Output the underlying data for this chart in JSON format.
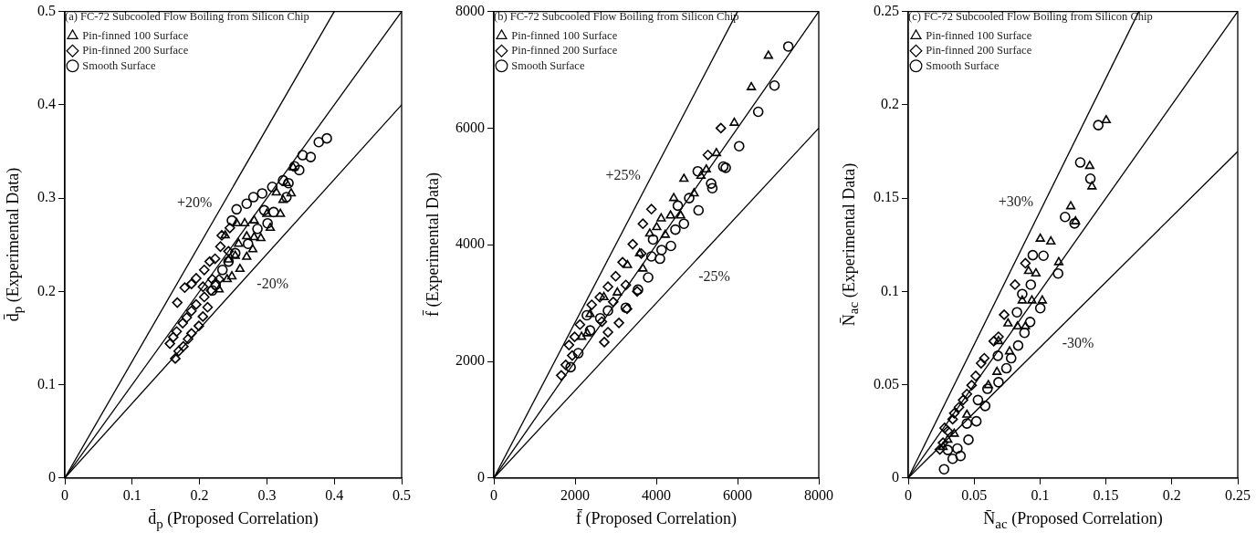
{
  "chart_data": [
    {
      "type": "scatter",
      "xlabel": "d̄$_{p}$ (Proposed Correlation)",
      "ylabel": "d̄$_{p}$ (Experimental Data)",
      "legend_title": "(a) FC-72 Subcooled Flow Boiling from Silicon Chip",
      "legend": "top left",
      "grid": false,
      "xlim": [
        0,
        0.5
      ],
      "ylim": [
        0,
        0.5
      ],
      "xticks": [
        0,
        0.1,
        0.2,
        0.3,
        0.4,
        0.5
      ],
      "yticks": [
        0,
        0.1,
        0.2,
        0.3,
        0.4,
        0.5
      ],
      "annotations": [
        {
          "text": "+20%",
          "x": 0.235,
          "y": 0.294
        },
        {
          "text": "-20%",
          "x": 0.266,
          "y": 0.213
        }
      ],
      "series": [
        {
          "name": "Pin-finned 100 Surface",
          "marker": "triangle",
          "color": "#000000",
          "x": [
            0.229,
            0.241,
            0.248,
            0.26,
            0.27,
            0.279,
            0.253,
            0.243,
            0.258,
            0.27,
            0.281,
            0.291,
            0.305,
            0.267,
            0.281,
            0.3,
            0.32,
            0.324,
            0.314,
            0.336,
            0.329,
            0.339,
            0.238,
            0.255
          ],
          "values": [
            0.202,
            0.213,
            0.216,
            0.224,
            0.237,
            0.245,
            0.238,
            0.234,
            0.251,
            0.259,
            0.258,
            0.257,
            0.268,
            0.273,
            0.276,
            0.283,
            0.283,
            0.298,
            0.306,
            0.305,
            0.316,
            0.333,
            0.26,
            0.273
          ]
        },
        {
          "name": "Pin-finned 200 Surface",
          "marker": "diamond",
          "color": "#000000",
          "x": [
            0.164,
            0.169,
            0.176,
            0.156,
            0.161,
            0.166,
            0.183,
            0.188,
            0.199,
            0.205,
            0.175,
            0.181,
            0.188,
            0.195,
            0.212,
            0.167,
            0.178,
            0.188,
            0.195,
            0.207,
            0.215,
            0.223,
            0.205,
            0.219,
            0.231,
            0.233,
            0.245,
            0.207,
            0.217,
            0.229,
            0.243
          ],
          "values": [
            0.128,
            0.136,
            0.141,
            0.144,
            0.151,
            0.157,
            0.149,
            0.155,
            0.163,
            0.173,
            0.166,
            0.172,
            0.179,
            0.186,
            0.183,
            0.188,
            0.204,
            0.208,
            0.214,
            0.223,
            0.232,
            0.235,
            0.205,
            0.213,
            0.248,
            0.26,
            0.268,
            0.194,
            0.201,
            0.213,
            0.243
          ]
        },
        {
          "name": "Smooth Surface",
          "marker": "circle",
          "color": "#000000",
          "x": [
            0.248,
            0.255,
            0.27,
            0.28,
            0.293,
            0.308,
            0.324,
            0.332,
            0.301,
            0.31,
            0.296,
            0.286,
            0.272,
            0.243,
            0.234,
            0.224,
            0.219,
            0.253,
            0.341,
            0.348,
            0.353,
            0.365,
            0.377,
            0.389,
            0.329
          ],
          "values": [
            0.276,
            0.288,
            0.294,
            0.301,
            0.305,
            0.312,
            0.319,
            0.316,
            0.273,
            0.285,
            0.287,
            0.267,
            0.251,
            0.232,
            0.223,
            0.207,
            0.201,
            0.241,
            0.334,
            0.33,
            0.346,
            0.344,
            0.36,
            0.364,
            0.301
          ]
        },
        {
          "type": "line",
          "marker": "none",
          "color": "#000000",
          "x": [
            0,
            0.4
          ],
          "values": [
            0,
            0.5
          ]
        },
        {
          "type": "line",
          "marker": "none",
          "color": "#000000",
          "x": [
            0,
            0.5
          ],
          "values": [
            0,
            0.5
          ]
        },
        {
          "type": "line",
          "marker": "none",
          "color": "#000000",
          "x": [
            0,
            0.5
          ],
          "values": [
            0,
            0.4
          ]
        }
      ]
    },
    {
      "type": "scatter",
      "xlabel": "f̄ (Proposed Correlation)",
      "ylabel": "f̄ (Experimental Data)",
      "legend_title": "(b) FC-72 Subcooled Flow Boiling from Silicon Chip",
      "legend": "top left",
      "grid": false,
      "xlim": [
        0,
        8000
      ],
      "ylim": [
        0,
        8000
      ],
      "xticks": [
        0,
        2000,
        4000,
        6000,
        8000
      ],
      "yticks": [
        0,
        2000,
        4000,
        6000,
        8000
      ],
      "annotations": [
        {
          "text": "+25%",
          "x": 3885,
          "y": 5180
        },
        {
          "text": "-25%",
          "x": 4723,
          "y": 3542
        }
      ],
      "series": [
        {
          "name": "Pin-finned 100 Surface",
          "marker": "triangle",
          "color": "#000000",
          "x": [
            6760,
            6340,
            5920,
            5480,
            5230,
            5100,
            4680,
            4930,
            4430,
            4120,
            4350,
            4600,
            4010,
            3840,
            3670,
            3590,
            3290,
            4220,
            3040,
            2710,
            2370,
            2160,
            2300
          ],
          "values": [
            7240,
            6700,
            6090,
            5570,
            5290,
            5180,
            5130,
            4880,
            4800,
            4450,
            4500,
            4500,
            4300,
            4190,
            3590,
            3850,
            3650,
            4170,
            3180,
            3100,
            2810,
            2420,
            2480
          ]
        },
        {
          "name": "Pin-finned 200 Surface",
          "marker": "diamond",
          "color": "#000000",
          "x": [
            5590,
            5270,
            3880,
            3670,
            3420,
            3170,
            3000,
            2810,
            2610,
            2410,
            2120,
            1990,
            1850,
            1930,
            1770,
            1660,
            2720,
            2810,
            3080,
            3280,
            3530,
            3250,
            3630,
            2940,
            2660
          ],
          "values": [
            6000,
            5540,
            4610,
            4360,
            4010,
            3700,
            3460,
            3280,
            3100,
            2970,
            2630,
            2420,
            2280,
            2100,
            1940,
            1760,
            2330,
            2500,
            2660,
            2900,
            3200,
            3310,
            3850,
            3020,
            2680
          ]
        },
        {
          "name": "Smooth Surface",
          "marker": "circle",
          "color": "#000000",
          "x": [
            7250,
            6910,
            6510,
            6040,
            5650,
            5710,
            5350,
            5380,
            5020,
            4810,
            4530,
            4680,
            5040,
            4470,
            4360,
            4130,
            4090,
            3880,
            3920,
            3800,
            3550,
            3250,
            2810,
            2620,
            2370,
            2080,
            1890,
            2290
          ],
          "values": [
            7400,
            6730,
            6280,
            5690,
            5340,
            5320,
            5050,
            4970,
            5260,
            4800,
            4670,
            4360,
            4590,
            4260,
            3980,
            3910,
            3760,
            3800,
            4090,
            3440,
            3230,
            2920,
            2870,
            2740,
            2530,
            2140,
            1900,
            2790
          ]
        },
        {
          "type": "line",
          "marker": "none",
          "color": "#000000",
          "x": [
            0,
            6000
          ],
          "values": [
            0,
            8000
          ]
        },
        {
          "type": "line",
          "marker": "none",
          "color": "#000000",
          "x": [
            0,
            8000
          ],
          "values": [
            0,
            8000
          ]
        },
        {
          "type": "line",
          "marker": "none",
          "color": "#000000",
          "x": [
            0,
            8000
          ],
          "values": [
            0,
            6000
          ]
        }
      ]
    },
    {
      "type": "scatter",
      "xlabel": "N̄$_{ac}$ (Proposed Correlation)",
      "ylabel": "N̄$_{ac}$ (Experimental Data)",
      "legend_title": "(c) FC-72 Subcooled Flow Boiling from Silicon Chip",
      "legend": "top left",
      "grid": false,
      "xlim": [
        0,
        0.25
      ],
      "ylim": [
        0,
        0.25
      ],
      "xticks": [
        0,
        0.05,
        0.1,
        0.15,
        0.2,
        0.25
      ],
      "yticks": [
        0,
        0.05,
        0.1,
        0.15,
        0.2,
        0.25
      ],
      "annotations": [
        {
          "text": "+30%",
          "x": 0.1033,
          "y": 0.1475
        },
        {
          "text": "-30%",
          "x": 0.1071,
          "y": 0.075
        }
      ],
      "series": [
        {
          "name": "Pin-finned 100 Surface",
          "marker": "triangle",
          "color": "#000000",
          "x": [
            0.1502,
            0.1377,
            0.1394,
            0.1233,
            0.1269,
            0.1002,
            0.1082,
            0.1142,
            0.0913,
            0.0969,
            0.0938,
            0.1017,
            0.0865,
            0.0757,
            0.0829,
            0.0889,
            0.0685,
            0.0769,
            0.0673,
            0.0608,
            0.0445,
            0.0349,
            0.03,
            0.0264
          ],
          "values": [
            0.1917,
            0.1672,
            0.1562,
            0.1456,
            0.1375,
            0.1282,
            0.1267,
            0.1156,
            0.1109,
            0.1096,
            0.0951,
            0.0951,
            0.0951,
            0.0828,
            0.0812,
            0.0812,
            0.0733,
            0.0678,
            0.0568,
            0.0497,
            0.0339,
            0.0237,
            0.0205,
            0.0166
          ]
        },
        {
          "name": "Pin-finned 200 Surface",
          "marker": "diamond",
          "color": "#000000",
          "x": [
            0.0889,
            0.081,
            0.0728,
            0.0649,
            0.0577,
            0.0512,
            0.0445,
            0.0385,
            0.0337,
            0.03,
            0.0264,
            0.024,
            0.0553,
            0.0481,
            0.0416,
            0.0349,
            0.0276,
            0.0685
          ],
          "values": [
            0.1151,
            0.1036,
            0.0875,
            0.0733,
            0.0642,
            0.0547,
            0.045,
            0.0379,
            0.0315,
            0.0252,
            0.0189,
            0.0153,
            0.0615,
            0.0497,
            0.0418,
            0.0347,
            0.0268,
            0.0757
          ]
        },
        {
          "name": "Smooth Surface",
          "marker": "circle",
          "color": "#000000",
          "x": [
            0.1442,
            0.1305,
            0.1382,
            0.119,
            0.1262,
            0.0945,
            0.1026,
            0.1137,
            0.093,
            0.0865,
            0.1002,
            0.0825,
            0.0925,
            0.0882,
            0.0834,
            0.0781,
            0.068,
            0.0745,
            0.0685,
            0.0601,
            0.0529,
            0.0584,
            0.0517,
            0.0457,
            0.0373,
            0.0397,
            0.0337,
            0.0272,
            0.03,
            0.0445
          ],
          "values": [
            0.1891,
            0.1691,
            0.1604,
            0.1399,
            0.1364,
            0.1194,
            0.1191,
            0.1096,
            0.1036,
            0.0986,
            0.091,
            0.0888,
            0.0836,
            0.0778,
            0.071,
            0.0642,
            0.0655,
            0.0588,
            0.0513,
            0.0478,
            0.0418,
            0.0386,
            0.0304,
            0.0205,
            0.0158,
            0.0118,
            0.0103,
            0.0047,
            0.015,
            0.0292
          ]
        },
        {
          "type": "line",
          "marker": "none",
          "color": "#000000",
          "x": [
            0,
            0.175
          ],
          "values": [
            0,
            0.25
          ]
        },
        {
          "type": "line",
          "marker": "none",
          "color": "#000000",
          "x": [
            0,
            0.25
          ],
          "values": [
            0,
            0.25
          ]
        },
        {
          "type": "line",
          "marker": "none",
          "color": "#000000",
          "x": [
            0,
            0.25
          ],
          "values": [
            0,
            0.175
          ]
        }
      ]
    }
  ]
}
